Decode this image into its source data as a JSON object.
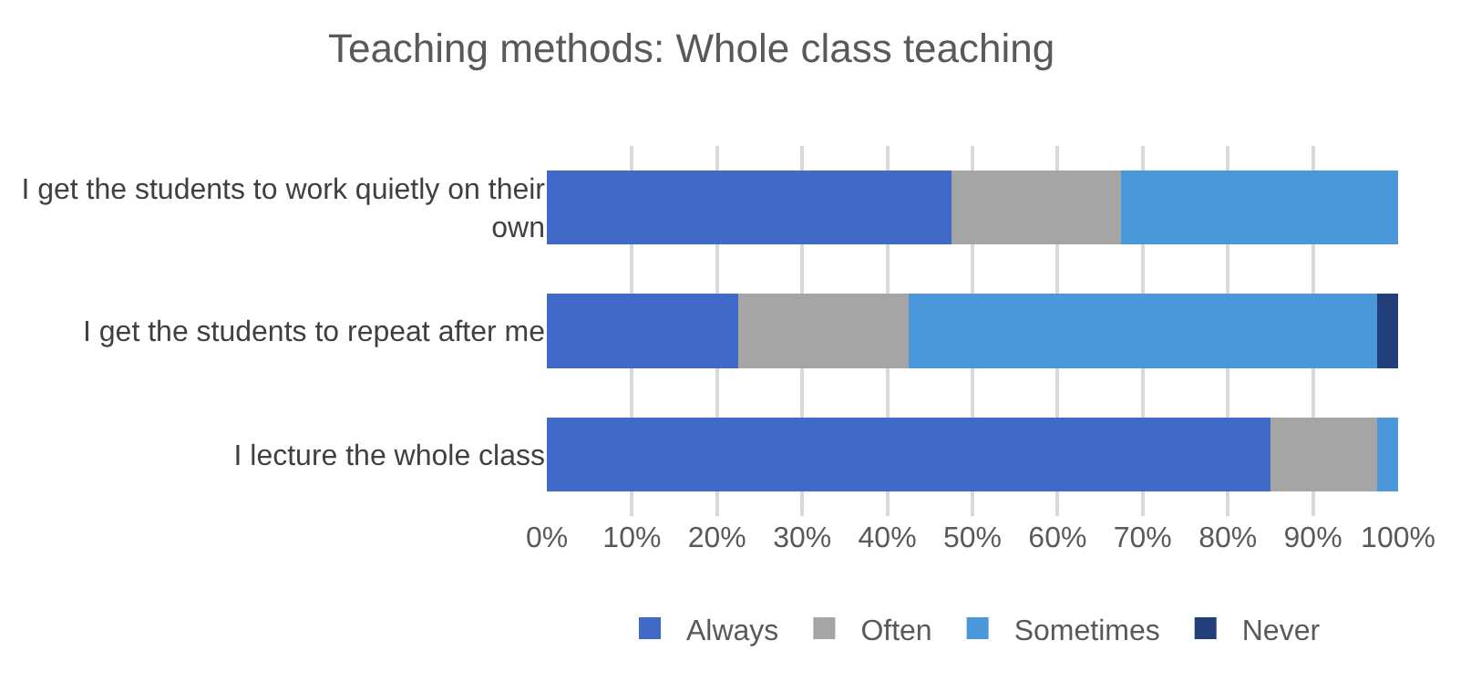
{
  "chart_data": {
    "type": "bar",
    "orientation": "horizontal",
    "stacked": true,
    "title": "Teaching methods: Whole class teaching",
    "categories": [
      "I get the students to work quietly on their own",
      "I get the students to repeat after me",
      "I lecture the whole class"
    ],
    "series": [
      {
        "name": "Always",
        "color": "#4169c8",
        "values": [
          47.5,
          22.5,
          85
        ]
      },
      {
        "name": "Often",
        "color": "#a5a5a5",
        "values": [
          20,
          20,
          12.5
        ]
      },
      {
        "name": "Sometimes",
        "color": "#4a98d9",
        "values": [
          32.5,
          55,
          2.5
        ]
      },
      {
        "name": "Never",
        "color": "#223f7a",
        "values": [
          0,
          2.5,
          0
        ]
      }
    ],
    "xlim": [
      0,
      100
    ],
    "xticks": [
      {
        "value": 0,
        "label": "0%"
      },
      {
        "value": 10,
        "label": "10%"
      },
      {
        "value": 20,
        "label": "20%"
      },
      {
        "value": 30,
        "label": "30%"
      },
      {
        "value": 40,
        "label": "40%"
      },
      {
        "value": 50,
        "label": "50%"
      },
      {
        "value": 60,
        "label": "60%"
      },
      {
        "value": 70,
        "label": "70%"
      },
      {
        "value": 80,
        "label": "80%"
      },
      {
        "value": 90,
        "label": "90%"
      },
      {
        "value": 100,
        "label": "100%"
      }
    ],
    "grid": "x",
    "legend": "bottom"
  }
}
